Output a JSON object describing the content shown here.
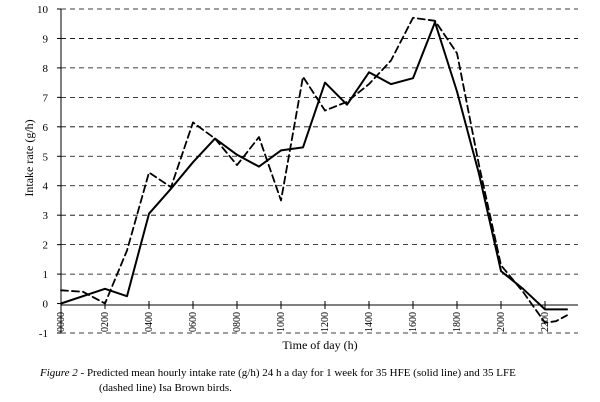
{
  "chart_data": {
    "type": "line",
    "xlabel": "Time of day (h)",
    "ylabel": "Intake rate (g/h)",
    "ylim": [
      -1,
      10
    ],
    "yticks": [
      -1,
      0,
      1,
      2,
      3,
      4,
      5,
      6,
      7,
      8,
      9,
      10
    ],
    "xlim": [
      0,
      2300
    ],
    "xticks": [
      "0000",
      "0200",
      "0400",
      "0600",
      "0800",
      "1000",
      "1200",
      "1400",
      "1600",
      "1800",
      "2000",
      "2200"
    ],
    "grid": "horizontal-dashed",
    "series": [
      {
        "name": "HFE (solid line)",
        "style": "solid",
        "color": "#000000",
        "x": [
          0,
          200,
          300,
          400,
          500,
          600,
          700,
          800,
          900,
          1000,
          1100,
          1200,
          1300,
          1400,
          1500,
          1600,
          1700,
          1800,
          1900,
          2000,
          2100,
          2200,
          2300
        ],
        "values": [
          0.0,
          0.5,
          0.25,
          3.05,
          3.9,
          4.8,
          5.6,
          5.05,
          4.65,
          5.2,
          5.3,
          7.5,
          6.75,
          7.85,
          7.45,
          7.65,
          9.55,
          7.2,
          4.4,
          1.1,
          0.5,
          -0.2,
          -0.2
        ]
      },
      {
        "name": "LFE (dashed line)",
        "style": "dashed",
        "color": "#000000",
        "x": [
          0,
          100,
          200,
          300,
          400,
          500,
          600,
          700,
          800,
          900,
          1000,
          1100,
          1200,
          1300,
          1400,
          1500,
          1600,
          1700,
          1800,
          1900,
          2000,
          2100,
          2200,
          2250,
          2300
        ],
        "values": [
          0.45,
          0.4,
          0.0,
          1.8,
          4.45,
          3.95,
          6.15,
          5.6,
          4.7,
          5.65,
          3.5,
          7.7,
          6.55,
          6.85,
          7.45,
          8.25,
          9.7,
          9.6,
          8.5,
          4.7,
          1.3,
          0.4,
          -0.65,
          -0.6,
          -0.4
        ]
      }
    ]
  },
  "caption": {
    "label": "Figure 2",
    "text_line1": " - Predicted mean hourly intake rate (g/h) 24 h a day for 1 week for 35 HFE (solid line) and 35 LFE",
    "text_line2": "(dashed line) Isa Brown birds."
  }
}
